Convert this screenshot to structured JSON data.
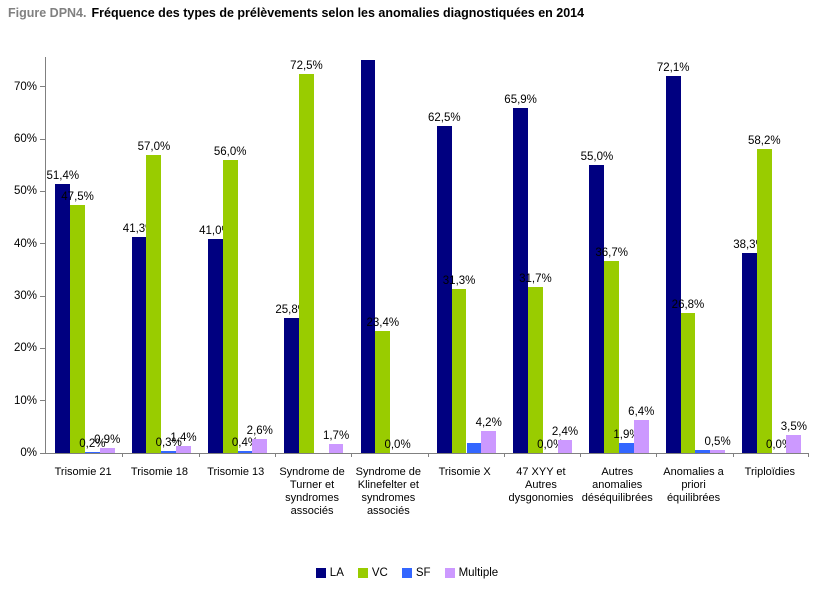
{
  "title": {
    "prefix": "Figure DPN4.",
    "text": "Fréquence des types de prélèvements selon les anomalies diagnostiquées en 2014"
  },
  "chart_data": {
    "type": "bar",
    "title": "Fréquence des types de prélèvements selon les anomalies diagnostiquées en 2014",
    "xlabel": "",
    "ylabel": "",
    "grid": false,
    "legend_position": "bottom",
    "y_axis": {
      "min": 0,
      "max_visible_tick": 70,
      "plot_top_value": 75.7,
      "step": 10,
      "tick_labels": [
        "0%",
        "10%",
        "20%",
        "30%",
        "40%",
        "50%",
        "60%",
        "70%"
      ]
    },
    "categories": [
      "Trisomie 21",
      "Trisomie 18",
      "Trisomie 13",
      "Syndrome de Turner et syndromes associés",
      "Syndrome de Klinefelter et syndromes associés",
      "Trisomie X",
      "47 XYY et Autres dysgonomies",
      "Autres anomalies déséquilibrées",
      "Anomalies a priori équilibrées",
      "Triploïdies"
    ],
    "series": [
      {
        "name": "LA",
        "color": "#000080",
        "values": [
          51.4,
          41.3,
          41.0,
          25.8,
          75.1,
          62.5,
          65.9,
          55.0,
          72.1,
          38.3
        ],
        "labels": [
          "51,4%",
          "41,3%",
          "41,0%",
          "25,8%",
          "",
          "62,5%",
          "65,9%",
          "55,0%",
          "72,1%",
          "38,3%"
        ]
      },
      {
        "name": "VC",
        "color": "#99CC00",
        "values": [
          47.5,
          57.0,
          56.0,
          72.5,
          23.4,
          31.3,
          31.7,
          36.7,
          26.8,
          58.2
        ],
        "labels": [
          "47,5%",
          "57,0%",
          "56,0%",
          "72,5%",
          "23,4%",
          "31,3%",
          "31,7%",
          "36,7%",
          "26,8%",
          "58,2%"
        ]
      },
      {
        "name": "SF",
        "color": "#3366FF",
        "values": [
          0.2,
          0.3,
          0.4,
          0,
          0,
          2.0,
          0,
          1.9,
          0.5,
          0
        ],
        "labels": [
          "0,2%",
          "0,3%",
          "0,4%",
          "",
          "0,0%",
          "",
          "0,0%",
          "1,9%",
          "",
          "0,0%"
        ]
      },
      {
        "name": "Multiple",
        "color": "#CC99FF",
        "values": [
          0.9,
          1.4,
          2.6,
          1.7,
          0,
          4.2,
          2.4,
          6.4,
          0.5,
          3.5
        ],
        "labels": [
          "0,9%",
          "1,4%",
          "2,6%",
          "1,7%",
          "",
          "4,2%",
          "2,4%",
          "6,4%",
          "0,5%",
          "3,5%"
        ]
      }
    ],
    "axis_color": "#808080",
    "title_prefix_color": "#808080"
  }
}
